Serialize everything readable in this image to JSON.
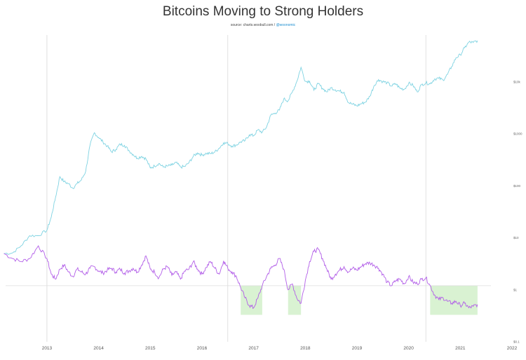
{
  "title": "Bitcoins Moving to Strong Holders",
  "source": {
    "prefix": "source: charts.woobull.com / ",
    "handle": "@woonomic"
  },
  "colors": {
    "price_line": "#7fd3e2",
    "holders_line": "#b25ee8",
    "highlight_fill": "#d9f2d2",
    "vertical_line": "#d8d8d8",
    "baseline": "#dddddd"
  },
  "chart_data": {
    "type": "line",
    "title": "Bitcoins Moving to Strong Holders",
    "x_ticks": [
      "2013",
      "2014",
      "2015",
      "2016",
      "2017",
      "2018",
      "2019",
      "2020",
      "2021",
      "2022"
    ],
    "y_ticks_major": [
      "$0.1",
      "$1",
      "$10",
      "$100",
      "$1000",
      "$10k"
    ],
    "y_scale": "log",
    "series": [
      {
        "key": "price",
        "points": [
          [
            "2012-03",
            5
          ],
          [
            "2012-05",
            5.1
          ],
          [
            "2012-07",
            7
          ],
          [
            "2012-09",
            11
          ],
          [
            "2012-11",
            11
          ],
          [
            "2013-01",
            14
          ],
          [
            "2013-02",
            25
          ],
          [
            "2013-03",
            60
          ],
          [
            "2013-04",
            150
          ],
          [
            "2013-05",
            120
          ],
          [
            "2013-06",
            110
          ],
          [
            "2013-07",
            90
          ],
          [
            "2013-08",
            110
          ],
          [
            "2013-09",
            130
          ],
          [
            "2013-10",
            190
          ],
          [
            "2013-11",
            600
          ],
          [
            "2013-12",
            1050
          ],
          [
            "2014-01",
            850
          ],
          [
            "2014-02",
            700
          ],
          [
            "2014-03",
            580
          ],
          [
            "2014-04",
            450
          ],
          [
            "2014-05",
            500
          ],
          [
            "2014-06",
            630
          ],
          [
            "2014-07",
            600
          ],
          [
            "2014-08",
            480
          ],
          [
            "2014-09",
            400
          ],
          [
            "2014-10",
            340
          ],
          [
            "2014-11",
            370
          ],
          [
            "2014-12",
            330
          ],
          [
            "2015-01",
            220
          ],
          [
            "2015-02",
            240
          ],
          [
            "2015-03",
            270
          ],
          [
            "2015-04",
            230
          ],
          [
            "2015-05",
            240
          ],
          [
            "2015-06",
            250
          ],
          [
            "2015-07",
            280
          ],
          [
            "2015-08",
            230
          ],
          [
            "2015-09",
            235
          ],
          [
            "2015-10",
            280
          ],
          [
            "2015-11",
            370
          ],
          [
            "2015-12",
            430
          ],
          [
            "2016-01",
            390
          ],
          [
            "2016-02",
            420
          ],
          [
            "2016-03",
            415
          ],
          [
            "2016-04",
            450
          ],
          [
            "2016-05",
            530
          ],
          [
            "2016-06",
            670
          ],
          [
            "2016-07",
            650
          ],
          [
            "2016-08",
            580
          ],
          [
            "2016-09",
            610
          ],
          [
            "2016-10",
            700
          ],
          [
            "2016-11",
            740
          ],
          [
            "2016-12",
            960
          ],
          [
            "2017-01",
            920
          ],
          [
            "2017-02",
            1190
          ],
          [
            "2017-03",
            1070
          ],
          [
            "2017-04",
            1350
          ],
          [
            "2017-05",
            2300
          ],
          [
            "2017-06",
            2500
          ],
          [
            "2017-07",
            2870
          ],
          [
            "2017-08",
            4700
          ],
          [
            "2017-09",
            4300
          ],
          [
            "2017-10",
            6400
          ],
          [
            "2017-11",
            10000
          ],
          [
            "2017-12",
            19000
          ],
          [
            "2018-01",
            10200
          ],
          [
            "2018-02",
            10300
          ],
          [
            "2018-03",
            6900
          ],
          [
            "2018-04",
            9200
          ],
          [
            "2018-05",
            7500
          ],
          [
            "2018-06",
            6400
          ],
          [
            "2018-07",
            7700
          ],
          [
            "2018-08",
            7000
          ],
          [
            "2018-09",
            6600
          ],
          [
            "2018-10",
            6300
          ],
          [
            "2018-11",
            4000
          ],
          [
            "2018-12",
            3700
          ],
          [
            "2019-01",
            3450
          ],
          [
            "2019-02",
            3800
          ],
          [
            "2019-03",
            4100
          ],
          [
            "2019-04",
            5300
          ],
          [
            "2019-05",
            8500
          ],
          [
            "2019-06",
            11000
          ],
          [
            "2019-07",
            10100
          ],
          [
            "2019-08",
            9600
          ],
          [
            "2019-09",
            8300
          ],
          [
            "2019-10",
            9200
          ],
          [
            "2019-11",
            7500
          ],
          [
            "2019-12",
            7200
          ],
          [
            "2020-01",
            9400
          ],
          [
            "2020-02",
            8600
          ],
          [
            "2020-03",
            6400
          ],
          [
            "2020-04",
            8800
          ],
          [
            "2020-05",
            9500
          ],
          [
            "2020-06",
            9150
          ],
          [
            "2020-07",
            11300
          ],
          [
            "2020-08",
            11700
          ],
          [
            "2020-09",
            10800
          ],
          [
            "2020-10",
            13800
          ],
          [
            "2020-11",
            19700
          ],
          [
            "2020-12",
            29000
          ],
          [
            "2021-01",
            33000
          ],
          [
            "2021-02",
            45000
          ],
          [
            "2021-03",
            58000
          ],
          [
            "2021-04",
            57000
          ],
          [
            "2021-05",
            62000
          ]
        ]
      },
      {
        "key": "holders",
        "points": [
          [
            "2012-03",
            5
          ],
          [
            "2012-05",
            4
          ],
          [
            "2012-07",
            3.5
          ],
          [
            "2012-09",
            4
          ],
          [
            "2012-11",
            7
          ],
          [
            "2013-01",
            4
          ],
          [
            "2013-02",
            2
          ],
          [
            "2013-03",
            1.6
          ],
          [
            "2013-04",
            2.5
          ],
          [
            "2013-05",
            3
          ],
          [
            "2013-06",
            2.2
          ],
          [
            "2013-07",
            1.8
          ],
          [
            "2013-08",
            2.5
          ],
          [
            "2013-09",
            2.2
          ],
          [
            "2013-10",
            2
          ],
          [
            "2013-11",
            2.6
          ],
          [
            "2013-12",
            2.8
          ],
          [
            "2014-01",
            2.3
          ],
          [
            "2014-02",
            2.1
          ],
          [
            "2014-03",
            2.4
          ],
          [
            "2014-04",
            2.6
          ],
          [
            "2014-05",
            2.2
          ],
          [
            "2014-06",
            2.5
          ],
          [
            "2014-07",
            2.1
          ],
          [
            "2014-08",
            2.3
          ],
          [
            "2014-09",
            2.6
          ],
          [
            "2014-10",
            2.2
          ],
          [
            "2014-11",
            3
          ],
          [
            "2014-12",
            4.5
          ],
          [
            "2015-01",
            2.5
          ],
          [
            "2015-02",
            2.2
          ],
          [
            "2015-03",
            1.7
          ],
          [
            "2015-04",
            2.5
          ],
          [
            "2015-05",
            2.8
          ],
          [
            "2015-06",
            1.9
          ],
          [
            "2015-07",
            2.2
          ],
          [
            "2015-08",
            1.6
          ],
          [
            "2015-09",
            2.3
          ],
          [
            "2015-10",
            2.5
          ],
          [
            "2015-11",
            3.5
          ],
          [
            "2015-12",
            2.5
          ],
          [
            "2016-01",
            2
          ],
          [
            "2016-02",
            2.7
          ],
          [
            "2016-03",
            3.5
          ],
          [
            "2016-04",
            2.6
          ],
          [
            "2016-05",
            2
          ],
          [
            "2016-06",
            3.6
          ],
          [
            "2016-07",
            2.6
          ],
          [
            "2016-08",
            2.2
          ],
          [
            "2016-09",
            1.8
          ],
          [
            "2016-10",
            1.1
          ],
          [
            "2016-11",
            0.7
          ],
          [
            "2016-12",
            0.5
          ],
          [
            "2017-01",
            0.45
          ],
          [
            "2017-02",
            0.7
          ],
          [
            "2017-03",
            1.2
          ],
          [
            "2017-04",
            1.8
          ],
          [
            "2017-05",
            2.6
          ],
          [
            "2017-06",
            3
          ],
          [
            "2017-07",
            4
          ],
          [
            "2017-08",
            2.5
          ],
          [
            "2017-09",
            1
          ],
          [
            "2017-10",
            1.3
          ],
          [
            "2017-11",
            0.7
          ],
          [
            "2017-12",
            0.55
          ],
          [
            "2018-01",
            1.5
          ],
          [
            "2018-02",
            3.5
          ],
          [
            "2018-03",
            5.5
          ],
          [
            "2018-04",
            6
          ],
          [
            "2018-05",
            4
          ],
          [
            "2018-06",
            2.5
          ],
          [
            "2018-07",
            1.6
          ],
          [
            "2018-08",
            2
          ],
          [
            "2018-09",
            2.4
          ],
          [
            "2018-10",
            2.8
          ],
          [
            "2018-11",
            2.2
          ],
          [
            "2018-12",
            2.6
          ],
          [
            "2019-01",
            2.4
          ],
          [
            "2019-02",
            2.8
          ],
          [
            "2019-03",
            3.2
          ],
          [
            "2019-04",
            3.3
          ],
          [
            "2019-05",
            3
          ],
          [
            "2019-06",
            2.6
          ],
          [
            "2019-07",
            2
          ],
          [
            "2019-08",
            1.4
          ],
          [
            "2019-09",
            1.2
          ],
          [
            "2019-10",
            1.5
          ],
          [
            "2019-11",
            1.6
          ],
          [
            "2019-12",
            1.3
          ],
          [
            "2020-01",
            1.8
          ],
          [
            "2020-02",
            1.4
          ],
          [
            "2020-03",
            1.3
          ],
          [
            "2020-04",
            1.6
          ],
          [
            "2020-05",
            1.7
          ],
          [
            "2020-06",
            1.2
          ],
          [
            "2020-07",
            0.8
          ],
          [
            "2020-08",
            0.65
          ],
          [
            "2020-09",
            0.7
          ],
          [
            "2020-10",
            0.6
          ],
          [
            "2020-11",
            0.55
          ],
          [
            "2020-12",
            0.6
          ],
          [
            "2021-01",
            0.5
          ],
          [
            "2021-02",
            0.55
          ],
          [
            "2021-03",
            0.45
          ],
          [
            "2021-04",
            0.48
          ],
          [
            "2021-05",
            0.52
          ]
        ]
      }
    ],
    "highlight_ranges": [
      [
        "2016-10",
        "2017-03"
      ],
      [
        "2017-09",
        "2017-12"
      ],
      [
        "2020-06",
        "2021-05"
      ]
    ],
    "vertical_lines": [
      "2013-01",
      "2016-07",
      "2020-05"
    ],
    "reference_y": 1.2,
    "grid": false,
    "legend": "none"
  }
}
